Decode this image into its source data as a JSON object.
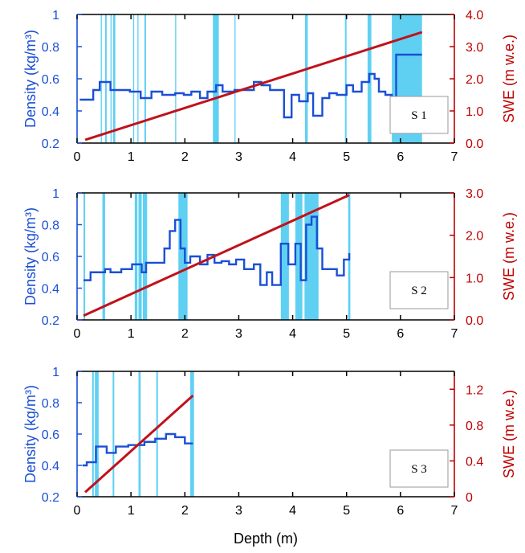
{
  "chart_data": [
    {
      "type": "line",
      "label": "S 1",
      "xlim": [
        0,
        7
      ],
      "x_ticks": [
        "0",
        "1",
        "2",
        "3",
        "4",
        "5",
        "6",
        "7"
      ],
      "ylabel_left": "Density (kg/m³)",
      "ylim_left": [
        0.2,
        1.0
      ],
      "y_ticks_left": [
        "0.2",
        "0.4",
        "0.6",
        "0.8",
        "1"
      ],
      "ylabel_right": "SWE (m w.e.)",
      "ylim_right": [
        0,
        4
      ],
      "y_ticks_right": [
        "0.0",
        "1.0",
        "2.0",
        "3.0",
        "4.0"
      ],
      "colors": {
        "density": "#1a4fd6",
        "swe": "#c0121b",
        "bands": "#5fd0f2"
      },
      "bands": [
        [
          0.44,
          0.46
        ],
        [
          0.52,
          0.55
        ],
        [
          0.62,
          0.64
        ],
        [
          0.67,
          0.71
        ],
        [
          1.04,
          1.06
        ],
        [
          1.12,
          1.14
        ],
        [
          1.25,
          1.28
        ],
        [
          1.82,
          1.84
        ],
        [
          2.52,
          2.63
        ],
        [
          2.92,
          2.94
        ],
        [
          4.23,
          4.28
        ],
        [
          4.97,
          5.0
        ],
        [
          5.39,
          5.46
        ],
        [
          5.84,
          6.4
        ]
      ],
      "series": [
        {
          "name": "Density",
          "step": true,
          "x": [
            0.05,
            0.3,
            0.42,
            0.62,
            0.98,
            1.18,
            1.38,
            1.58,
            1.82,
            1.98,
            2.12,
            2.28,
            2.42,
            2.58,
            2.7,
            2.92,
            3.28,
            3.42,
            3.58,
            3.72,
            3.84,
            3.98,
            4.12,
            4.28,
            4.38,
            4.55,
            4.68,
            4.82,
            5.0,
            5.12,
            5.28,
            5.42,
            5.52,
            5.6,
            5.72,
            5.84,
            5.92,
            6.4
          ],
          "y": [
            0.47,
            0.53,
            0.58,
            0.53,
            0.52,
            0.48,
            0.52,
            0.5,
            0.51,
            0.5,
            0.52,
            0.48,
            0.52,
            0.56,
            0.52,
            0.53,
            0.58,
            0.56,
            0.53,
            0.53,
            0.36,
            0.5,
            0.46,
            0.51,
            0.37,
            0.48,
            0.51,
            0.5,
            0.56,
            0.52,
            0.58,
            0.63,
            0.6,
            0.52,
            0.5,
            0.38,
            0.75,
            0.75
          ]
        },
        {
          "name": "SWE",
          "axis": "right",
          "x": [
            0.15,
            6.4
          ],
          "y": [
            0.1,
            3.45
          ]
        }
      ]
    },
    {
      "type": "line",
      "label": "S 2",
      "xlim": [
        0,
        7
      ],
      "x_ticks": [
        "0",
        "1",
        "2",
        "3",
        "4",
        "5",
        "6",
        "7"
      ],
      "ylabel_left": "Density (kg/m³)",
      "ylim_left": [
        0.2,
        1.0
      ],
      "y_ticks_left": [
        "0.2",
        "0.4",
        "0.6",
        "0.8",
        "1"
      ],
      "ylabel_right": "SWE (m w.e.)",
      "ylim_right": [
        0,
        3
      ],
      "y_ticks_right": [
        "0.0",
        "1.0",
        "2.0",
        "3.0"
      ],
      "colors": {
        "density": "#1a4fd6",
        "swe": "#c0121b",
        "bands": "#5fd0f2"
      },
      "bands": [
        [
          0.12,
          0.15
        ],
        [
          0.47,
          0.52
        ],
        [
          1.07,
          1.12
        ],
        [
          1.14,
          1.2
        ],
        [
          1.22,
          1.3
        ],
        [
          1.88,
          2.05
        ],
        [
          3.78,
          3.93
        ],
        [
          4.05,
          4.18
        ],
        [
          4.22,
          4.48
        ],
        [
          5.03,
          5.07
        ]
      ],
      "series": [
        {
          "name": "Density",
          "step": true,
          "x": [
            0.12,
            0.25,
            0.52,
            0.62,
            0.82,
            1.02,
            1.2,
            1.28,
            1.62,
            1.72,
            1.82,
            1.92,
            2.0,
            2.1,
            2.28,
            2.42,
            2.55,
            2.68,
            2.82,
            2.95,
            3.1,
            3.28,
            3.4,
            3.52,
            3.62,
            3.78,
            3.92,
            4.05,
            4.15,
            4.25,
            4.35,
            4.45,
            4.55,
            4.62,
            4.82,
            4.95,
            5.05
          ],
          "y": [
            0.45,
            0.5,
            0.52,
            0.5,
            0.52,
            0.55,
            0.5,
            0.56,
            0.65,
            0.76,
            0.83,
            0.65,
            0.56,
            0.6,
            0.55,
            0.61,
            0.56,
            0.57,
            0.55,
            0.58,
            0.52,
            0.55,
            0.42,
            0.5,
            0.42,
            0.68,
            0.55,
            0.68,
            0.45,
            0.8,
            0.85,
            0.65,
            0.52,
            0.52,
            0.48,
            0.58,
            0.62
          ]
        },
        {
          "name": "SWE",
          "axis": "right",
          "x": [
            0.12,
            5.05
          ],
          "y": [
            0.1,
            2.95
          ]
        }
      ]
    },
    {
      "type": "line",
      "label": "S 3",
      "xlim": [
        0,
        7
      ],
      "x_ticks": [
        "0",
        "1",
        "2",
        "3",
        "4",
        "5",
        "6",
        "7"
      ],
      "xlabel": "Depth (m)",
      "ylabel_left": "Density (kg/m³)",
      "ylim_left": [
        0.2,
        1.0
      ],
      "y_ticks_left": [
        "0.2",
        "0.4",
        "0.6",
        "0.8",
        "1"
      ],
      "ylabel_right": "SWE (m w.e.)",
      "ylim_right": [
        0,
        1.4
      ],
      "y_ticks_right": [
        "0",
        "0.4",
        "0.8",
        "1.2"
      ],
      "colors": {
        "density": "#1a4fd6",
        "swe": "#c0121b",
        "bands": "#5fd0f2"
      },
      "bands": [
        [
          0.28,
          0.31
        ],
        [
          0.33,
          0.4
        ],
        [
          0.66,
          0.69
        ],
        [
          1.14,
          1.18
        ],
        [
          1.47,
          1.5
        ],
        [
          2.1,
          2.17
        ]
      ],
      "series": [
        {
          "name": "Density",
          "step": true,
          "x": [
            0.1,
            0.18,
            0.35,
            0.55,
            0.72,
            0.95,
            1.25,
            1.45,
            1.65,
            1.82,
            2.0,
            2.15
          ],
          "y": [
            0.4,
            0.42,
            0.52,
            0.48,
            0.52,
            0.53,
            0.55,
            0.57,
            0.6,
            0.58,
            0.54,
            0.54
          ]
        },
        {
          "name": "SWE",
          "axis": "right",
          "x": [
            0.15,
            2.15
          ],
          "y": [
            0.05,
            1.13
          ]
        }
      ]
    }
  ]
}
